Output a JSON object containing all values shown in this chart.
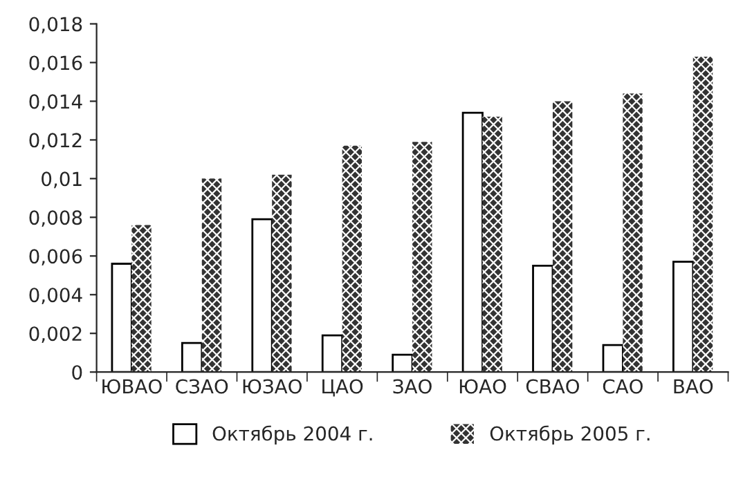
{
  "chart_data": {
    "type": "bar",
    "categories": [
      "ЮВАО",
      "СЗАО",
      "ЮЗАО",
      "ЦАО",
      "ЗАО",
      "ЮАО",
      "СВАО",
      "САО",
      "ВАО"
    ],
    "series": [
      {
        "name": "Октябрь 2004 г.",
        "color": "#ffffff",
        "values": [
          0.0056,
          0.0015,
          0.0079,
          0.0019,
          0.0009,
          0.0134,
          0.0055,
          0.0014,
          0.0057
        ]
      },
      {
        "name": "Октябрь 2005 г.",
        "color": "#333333",
        "values": [
          0.0076,
          0.01,
          0.0102,
          0.0117,
          0.0119,
          0.0132,
          0.014,
          0.0144,
          0.0163
        ]
      }
    ],
    "ylim": [
      0,
      0.018
    ],
    "yticks": [
      0,
      {
        "value": 0.002,
        "label": "0,002"
      },
      {
        "value": 0.004,
        "label": "0,004"
      },
      {
        "value": 0.006,
        "label": "0,006"
      },
      {
        "value": 0.008,
        "label": "0,008"
      },
      {
        "value": 0.01,
        "label": "0,01"
      },
      {
        "value": 0.012,
        "label": "0,012"
      },
      {
        "value": 0.014,
        "label": "0,014"
      },
      {
        "value": 0.016,
        "label": "0,016"
      },
      {
        "value": 0.018,
        "label": "0,018"
      }
    ],
    "grid": false,
    "legend": "bottom"
  }
}
